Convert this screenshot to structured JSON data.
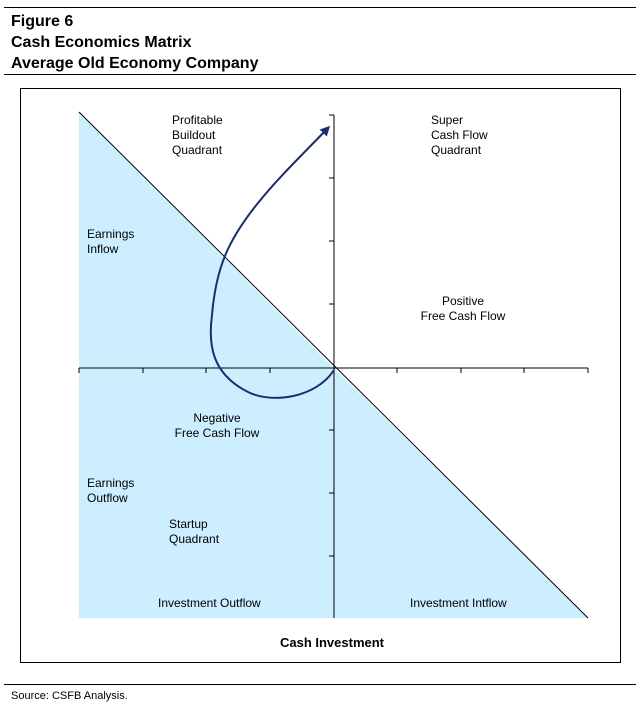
{
  "header": {
    "figure_label": "Figure 6",
    "title": "Cash Economics Matrix",
    "subtitle": "Average Old Economy Company"
  },
  "diagram": {
    "labels": {
      "profitable_buildout": "Profitable\nBuildout\nQuadrant",
      "super_cash_flow": "Super\nCash Flow\nQuadrant",
      "earnings_inflow": "Earnings\nInflow",
      "positive_fcf": "Positive\nFree Cash Flow",
      "negative_fcf": "Negative\nFree Cash Flow",
      "earnings_outflow": "Earnings\nOutflow",
      "startup": "Startup\nQuadrant",
      "investment_outflow": "Investment Outflow",
      "investment_inflow": "Investment Intflow"
    },
    "x_axis_title": "Cash Investment",
    "colors": {
      "shade_fill": "#cceeff",
      "arrow_stroke": "#1a2e6e",
      "line_stroke": "#000000"
    }
  },
  "footer": {
    "source": "Source: CSFB Analysis."
  }
}
